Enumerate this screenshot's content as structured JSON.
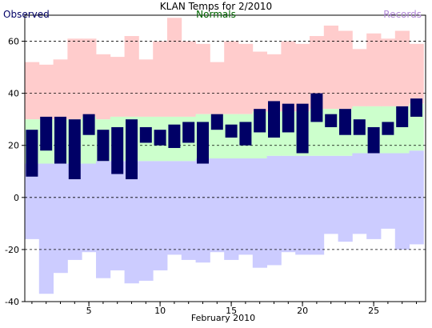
{
  "chart_data": {
    "type": "bar",
    "title": "KLAN Temps for 2/2010",
    "legend": [
      {
        "label": "Observed",
        "color": "#000066",
        "position": "top-left"
      },
      {
        "label": "Normals",
        "color": "#006600",
        "position": "top-center"
      },
      {
        "label": "Records",
        "color": "#b38ad9",
        "position": "top-right"
      }
    ],
    "xlabel": "February 2010",
    "ylabel": "",
    "xlim": [
      1,
      28
    ],
    "ylim": [
      -40,
      70
    ],
    "x_ticks": [
      5,
      10,
      15,
      20,
      25
    ],
    "y_ticks": [
      -40,
      -20,
      0,
      20,
      40,
      60
    ],
    "grid": "dashed horizontal at y ticks",
    "days": [
      1,
      2,
      3,
      4,
      5,
      6,
      7,
      8,
      9,
      10,
      11,
      12,
      13,
      14,
      15,
      16,
      17,
      18,
      19,
      20,
      21,
      22,
      23,
      24,
      25,
      26,
      27,
      28
    ],
    "series": [
      {
        "name": "Observed",
        "color": "#000066",
        "high": [
          26,
          31,
          31,
          30,
          32,
          26,
          27,
          30,
          27,
          26,
          28,
          29,
          29,
          32,
          28,
          29,
          34,
          37,
          36,
          36,
          40,
          32,
          34,
          30,
          27,
          29,
          35,
          38
        ],
        "low": [
          8,
          18,
          13,
          7,
          24,
          14,
          9,
          7,
          21,
          20,
          19,
          21,
          13,
          26,
          23,
          20,
          25,
          23,
          25,
          17,
          29,
          27,
          24,
          24,
          17,
          24,
          27,
          31
        ]
      },
      {
        "name": "Normals",
        "color": "#ccffcc",
        "high": [
          30,
          30,
          30,
          30,
          31,
          30,
          31,
          31,
          31,
          31,
          31,
          31,
          32,
          32,
          32,
          32,
          33,
          33,
          33,
          33,
          34,
          34,
          34,
          35,
          35,
          35,
          35,
          36
        ],
        "low": [
          13,
          13,
          13,
          13,
          13,
          14,
          14,
          14,
          14,
          14,
          14,
          14,
          15,
          15,
          15,
          15,
          15,
          16,
          16,
          16,
          16,
          16,
          16,
          17,
          17,
          17,
          17,
          18
        ]
      },
      {
        "name": "Records",
        "color": "#ffcccc",
        "color_low": "#ccccff",
        "high": [
          52,
          51,
          53,
          61,
          61,
          55,
          54,
          62,
          53,
          60,
          69,
          60,
          59,
          52,
          60,
          59,
          56,
          55,
          60,
          59,
          62,
          66,
          64,
          57,
          63,
          61,
          64,
          59
        ],
        "low": [
          -16,
          -37,
          -29,
          -24,
          -21,
          -31,
          -28,
          -33,
          -32,
          -28,
          -22,
          -24,
          -25,
          -21,
          -24,
          -22,
          -27,
          -26,
          -21,
          -22,
          -22,
          -14,
          -17,
          -14,
          -16,
          -12,
          -20,
          -18
        ]
      }
    ]
  }
}
